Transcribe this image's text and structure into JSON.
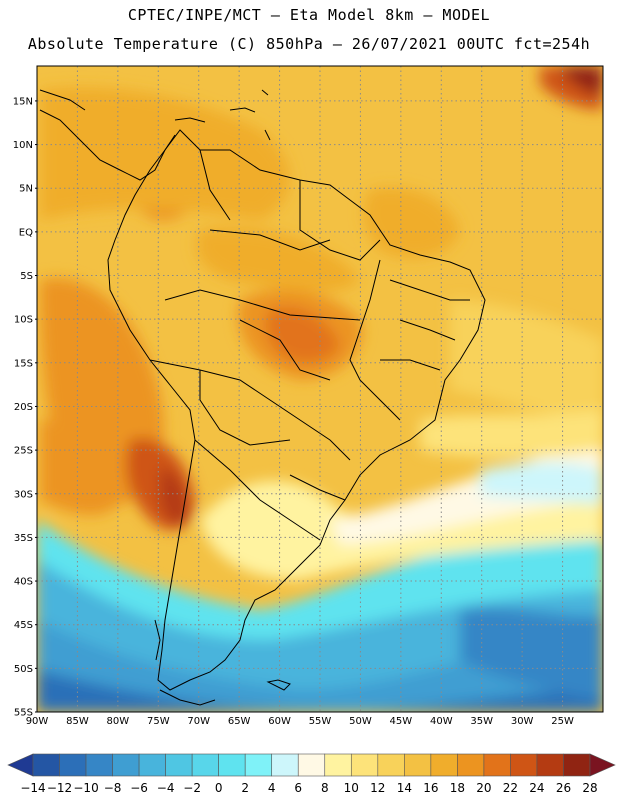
{
  "header": {
    "line1": "CPTEC/INPE/MCT –  Eta Model 8km – MODEL",
    "line2": "Absolute Temperature (C) 850hPa – 26/07/2021 00UTC fct=254h"
  },
  "map": {
    "lat_labels": [
      "15N",
      "10N",
      "5N",
      "EQ",
      "5S",
      "10S",
      "15S",
      "20S",
      "25S",
      "30S",
      "35S",
      "40S",
      "45S",
      "50S",
      "55S"
    ],
    "lon_labels": [
      "90W",
      "85W",
      "80W",
      "75W",
      "70W",
      "65W",
      "60W",
      "55W",
      "50W",
      "45W",
      "40W",
      "35W",
      "30W",
      "25W"
    ],
    "gridlines": "dotted"
  },
  "colorbar": {
    "labels": [
      "-14",
      "-12",
      "-10",
      "-8",
      "-6",
      "-4",
      "-2",
      "0",
      "2",
      "4",
      "6",
      "8",
      "10",
      "12",
      "14",
      "16",
      "18",
      "20",
      "22",
      "24",
      "26",
      "28"
    ],
    "colors": [
      "#1f3a93",
      "#2456a4",
      "#2c6fb8",
      "#3686c6",
      "#3f9ed2",
      "#48b4dc",
      "#4fc6e3",
      "#58d6ea",
      "#5fe3ef",
      "#7ff2f8",
      "#cdf6fb",
      "#fff9e5",
      "#fff3a0",
      "#fde37a",
      "#f8d25a",
      "#f3c143",
      "#f0ad2c",
      "#ec9420",
      "#e2731a",
      "#cf5515",
      "#b43b12",
      "#902412",
      "#7a1420"
    ]
  }
}
